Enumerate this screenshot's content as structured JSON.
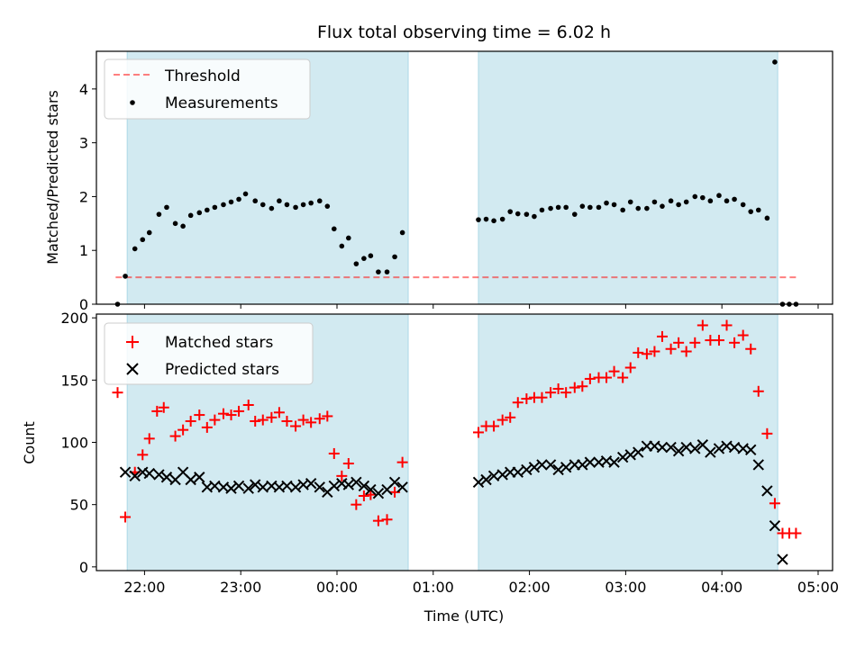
{
  "colors": {
    "span": "#add8e6",
    "threshold": "#ff0000",
    "measurement": "#000000",
    "matched": "#ff0000",
    "predicted": "#000000"
  },
  "chart_data": [
    {
      "type": "scatter",
      "title": "Flux total observing time = 6.02 h",
      "xlabel": "",
      "ylabel": "Matched/Predicted stars",
      "x_unit": "hours UTC (values >24 are past midnight)",
      "xlim": [
        21.5,
        29.15
      ],
      "ylim": [
        0,
        4.7
      ],
      "yticks": [
        0,
        1,
        2,
        3,
        4
      ],
      "xticks": [
        22,
        23,
        24,
        25,
        26,
        27,
        28,
        29
      ],
      "shaded_spans": [
        [
          21.82,
          24.74
        ],
        [
          25.47,
          28.58
        ]
      ],
      "threshold": 0.5,
      "threshold_x": [
        21.7,
        28.8
      ],
      "legend": {
        "threshold_label": "Threshold",
        "measurements_label": "Measurements",
        "location": "upper-left"
      },
      "series": [
        {
          "name": "Measurements",
          "x": [
            21.72,
            21.8,
            21.9,
            21.98,
            22.05,
            22.15,
            22.23,
            22.32,
            22.4,
            22.48,
            22.57,
            22.65,
            22.73,
            22.82,
            22.9,
            22.98,
            23.05,
            23.15,
            23.23,
            23.32,
            23.4,
            23.48,
            23.57,
            23.65,
            23.73,
            23.82,
            23.9,
            23.97,
            24.05,
            24.12,
            24.2,
            24.28,
            24.35,
            24.43,
            24.52,
            24.6,
            24.68,
            25.47,
            25.55,
            25.63,
            25.72,
            25.8,
            25.88,
            25.97,
            26.05,
            26.13,
            26.22,
            26.3,
            26.38,
            26.47,
            26.55,
            26.63,
            26.72,
            26.8,
            26.88,
            26.97,
            27.05,
            27.13,
            27.22,
            27.3,
            27.38,
            27.47,
            27.55,
            27.63,
            27.72,
            27.8,
            27.88,
            27.97,
            28.05,
            28.13,
            28.22,
            28.3,
            28.38,
            28.47,
            28.55,
            28.63,
            28.7,
            28.77
          ],
          "y": [
            0.0,
            0.52,
            1.03,
            1.2,
            1.33,
            1.67,
            1.8,
            1.5,
            1.45,
            1.65,
            1.7,
            1.75,
            1.8,
            1.85,
            1.9,
            1.95,
            2.05,
            1.92,
            1.85,
            1.78,
            1.92,
            1.85,
            1.8,
            1.85,
            1.88,
            1.92,
            1.82,
            1.4,
            1.08,
            1.23,
            0.75,
            0.85,
            0.9,
            0.6,
            0.6,
            0.88,
            1.33,
            1.57,
            1.58,
            1.55,
            1.58,
            1.72,
            1.68,
            1.67,
            1.63,
            1.75,
            1.78,
            1.8,
            1.8,
            1.67,
            1.82,
            1.8,
            1.8,
            1.88,
            1.85,
            1.75,
            1.9,
            1.78,
            1.78,
            1.9,
            1.82,
            1.92,
            1.85,
            1.9,
            2.0,
            1.98,
            1.92,
            2.02,
            1.92,
            1.95,
            1.85,
            1.72,
            1.75,
            1.6,
            4.5,
            0.0,
            0.0,
            0.0
          ]
        }
      ]
    },
    {
      "type": "scatter",
      "title": "",
      "xlabel": "Time (UTC)",
      "ylabel": "Count",
      "xlim": [
        21.5,
        29.15
      ],
      "ylim": [
        -3,
        203
      ],
      "yticks": [
        0,
        50,
        100,
        150,
        200
      ],
      "xticks": [
        22,
        23,
        24,
        25,
        26,
        27,
        28,
        29
      ],
      "xtick_labels": [
        "22:00",
        "23:00",
        "00:00",
        "01:00",
        "02:00",
        "03:00",
        "04:00",
        "05:00"
      ],
      "shaded_spans": [
        [
          21.82,
          24.74
        ],
        [
          25.47,
          28.58
        ]
      ],
      "legend": {
        "matched_label": "Matched stars",
        "predicted_label": "Predicted stars",
        "location": "upper-left"
      },
      "series": [
        {
          "name": "Matched stars",
          "marker": "plus",
          "x": [
            21.72,
            21.8,
            21.9,
            21.98,
            22.05,
            22.13,
            22.2,
            22.32,
            22.4,
            22.48,
            22.57,
            22.65,
            22.73,
            22.82,
            22.9,
            22.98,
            23.08,
            23.15,
            23.23,
            23.32,
            23.4,
            23.48,
            23.57,
            23.65,
            23.73,
            23.82,
            23.9,
            23.97,
            24.05,
            24.12,
            24.2,
            24.28,
            24.35,
            24.43,
            24.52,
            24.6,
            24.68,
            25.47,
            25.55,
            25.63,
            25.72,
            25.8,
            25.88,
            25.97,
            26.05,
            26.13,
            26.22,
            26.3,
            26.38,
            26.47,
            26.55,
            26.63,
            26.72,
            26.8,
            26.88,
            26.97,
            27.05,
            27.13,
            27.22,
            27.3,
            27.38,
            27.47,
            27.55,
            27.63,
            27.72,
            27.8,
            27.88,
            27.97,
            28.05,
            28.13,
            28.22,
            28.3,
            28.38,
            28.47,
            28.55,
            28.63,
            28.7,
            28.77
          ],
          "y": [
            140,
            40,
            76,
            90,
            103,
            125,
            128,
            105,
            110,
            117,
            122,
            112,
            118,
            123,
            122,
            125,
            130,
            117,
            118,
            120,
            124,
            117,
            113,
            118,
            116,
            119,
            121,
            91,
            73,
            83,
            50,
            57,
            58,
            37,
            38,
            60,
            84,
            108,
            113,
            113,
            118,
            120,
            132,
            135,
            136,
            136,
            140,
            143,
            140,
            144,
            145,
            151,
            152,
            152,
            157,
            152,
            160,
            172,
            171,
            173,
            185,
            175,
            180,
            173,
            180,
            194,
            182,
            182,
            194,
            180,
            186,
            175,
            141,
            107,
            51,
            27,
            27,
            27
          ]
        },
        {
          "name": "Predicted stars",
          "marker": "x",
          "x": [
            21.8,
            21.9,
            21.98,
            22.05,
            22.15,
            22.23,
            22.32,
            22.4,
            22.48,
            22.57,
            22.65,
            22.73,
            22.82,
            22.9,
            22.98,
            23.08,
            23.15,
            23.23,
            23.32,
            23.4,
            23.48,
            23.57,
            23.65,
            23.73,
            23.82,
            23.9,
            23.97,
            24.05,
            24.12,
            24.2,
            24.28,
            24.35,
            24.43,
            24.52,
            24.6,
            24.68,
            25.47,
            25.55,
            25.63,
            25.72,
            25.8,
            25.88,
            25.97,
            26.05,
            26.13,
            26.22,
            26.3,
            26.38,
            26.47,
            26.55,
            26.63,
            26.72,
            26.8,
            26.88,
            26.97,
            27.05,
            27.13,
            27.22,
            27.3,
            27.38,
            27.47,
            27.55,
            27.63,
            27.72,
            27.8,
            27.88,
            27.97,
            28.05,
            28.13,
            28.22,
            28.3,
            28.38,
            28.47,
            28.55,
            28.63
          ],
          "y": [
            76,
            73,
            76,
            75,
            74,
            72,
            70,
            76,
            70,
            72,
            64,
            65,
            64,
            63,
            65,
            63,
            66,
            64,
            65,
            64,
            65,
            64,
            66,
            67,
            64,
            60,
            65,
            67,
            66,
            68,
            65,
            62,
            59,
            62,
            68,
            64,
            68,
            70,
            73,
            74,
            76,
            76,
            78,
            80,
            82,
            82,
            78,
            80,
            82,
            82,
            84,
            84,
            85,
            84,
            88,
            90,
            92,
            97,
            97,
            96,
            96,
            93,
            96,
            95,
            98,
            92,
            95,
            97,
            96,
            95,
            94,
            82,
            61,
            33,
            6
          ]
        }
      ]
    }
  ]
}
